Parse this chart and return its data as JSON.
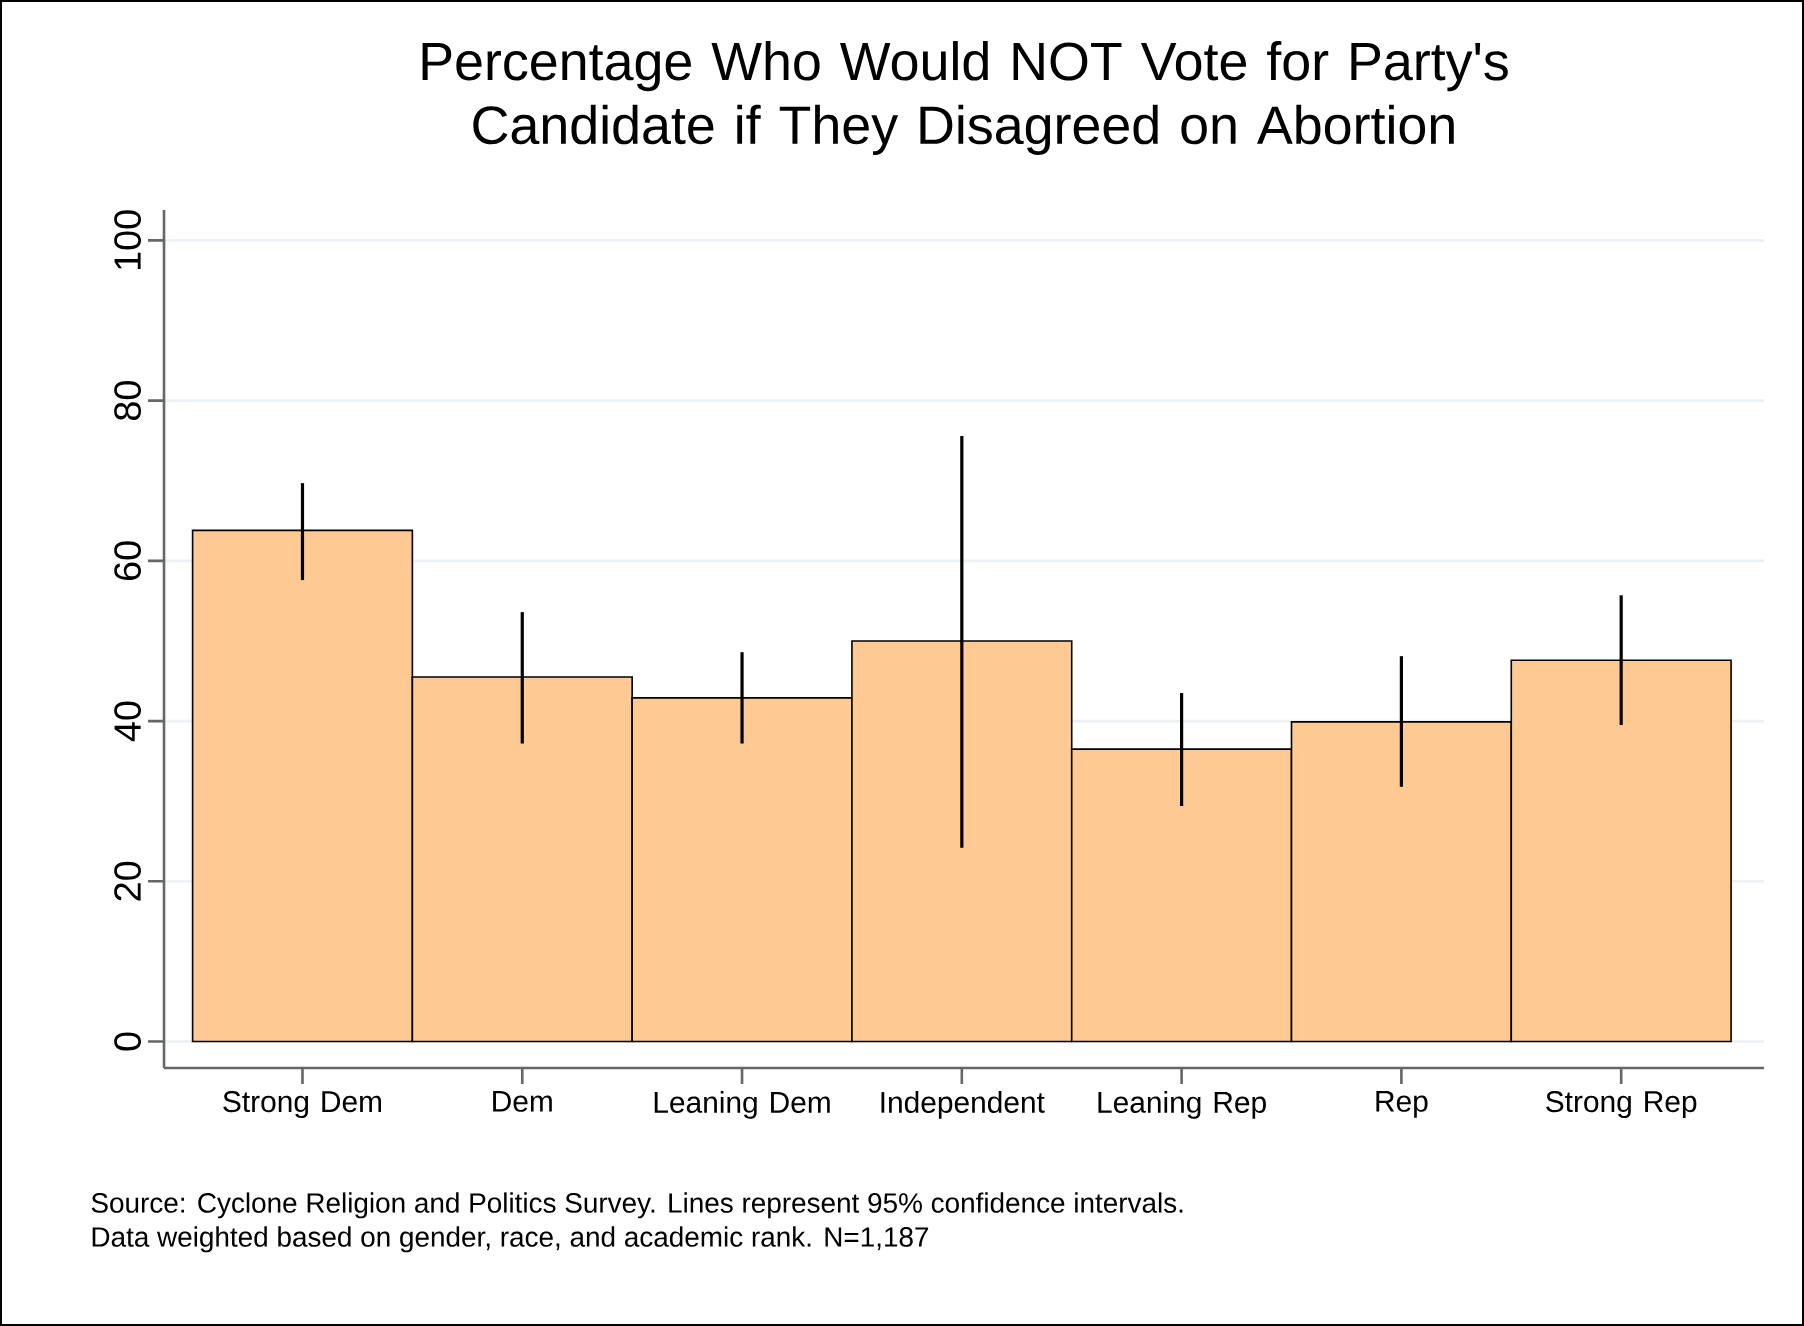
{
  "chart_data": {
    "type": "bar",
    "title": "Percentage Who Would NOT Vote for Party's Candidate if They Disagreed on Abortion",
    "categories": [
      "Strong Dem",
      "Dem",
      "Leaning Dem",
      "Independent",
      "Leaning Rep",
      "Rep",
      "Strong Rep"
    ],
    "values": [
      63.8,
      45.5,
      42.9,
      50.0,
      36.5,
      39.9,
      47.6
    ],
    "errors": [
      [
        57.6,
        69.7
      ],
      [
        37.2,
        53.6
      ],
      [
        37.2,
        48.6
      ],
      [
        24.2,
        75.6
      ],
      [
        29.4,
        43.5
      ],
      [
        31.8,
        48.1
      ],
      [
        39.5,
        55.7
      ]
    ],
    "color": "#ffc994",
    "ylim": [
      -3.3,
      103.8
    ],
    "yticks": [
      0,
      20,
      40,
      60,
      80,
      100
    ],
    "grid": "y",
    "annotations": [
      "Source: Cyclone Religion and Politics Survey. Lines represent 95% confidence intervals.",
      "Data weighted based on gender, race, and academic rank. N=1,187"
    ]
  }
}
